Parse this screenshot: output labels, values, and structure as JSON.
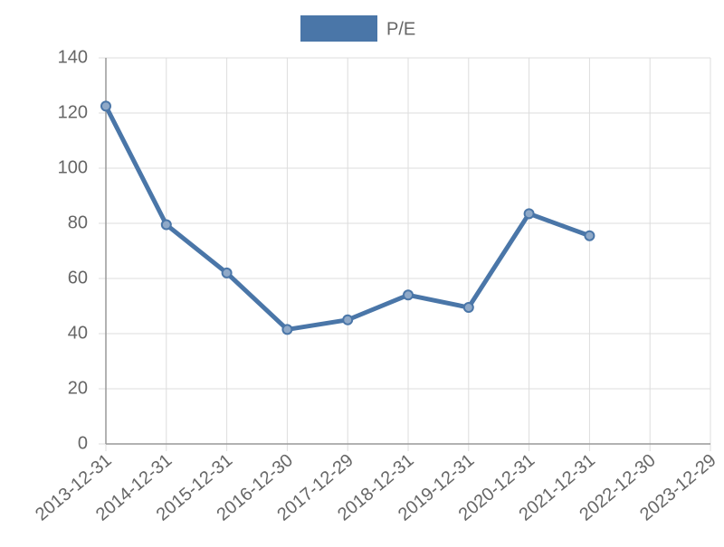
{
  "chart_data": {
    "type": "line",
    "categories": [
      "2013-12-31",
      "2014-12-31",
      "2015-12-31",
      "2016-12-30",
      "2017-12-29",
      "2018-12-31",
      "2019-12-31",
      "2020-12-31",
      "2021-12-31",
      "2022-12-30",
      "2023-12-29"
    ],
    "series": [
      {
        "name": "P/E",
        "color": "#4a76a8",
        "values": [
          122.5,
          79.5,
          62,
          41.5,
          45,
          54,
          49.5,
          83.5,
          75.5,
          null,
          null
        ]
      }
    ],
    "ylim": [
      0,
      140
    ],
    "yticks": [
      0,
      20,
      40,
      60,
      80,
      100,
      120,
      140
    ],
    "grid": true,
    "legend": "top"
  }
}
